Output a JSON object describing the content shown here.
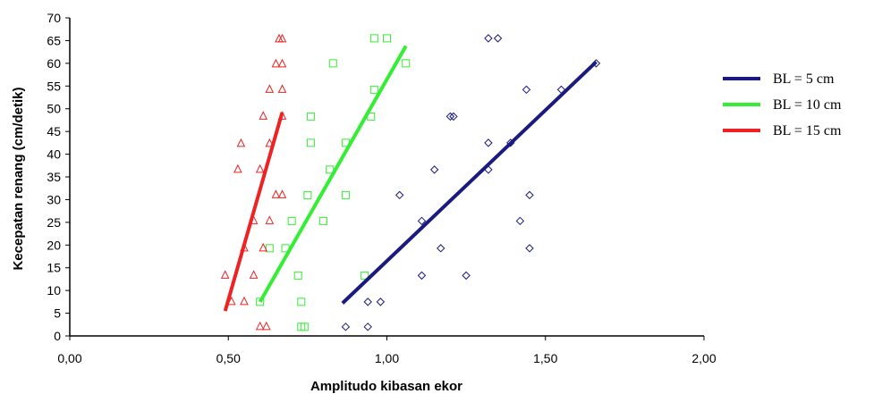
{
  "chart_data": {
    "type": "scatter",
    "title": "",
    "xlabel": "Amplitudo kibasan ekor",
    "ylabel": "Kecepatan renang (cm/detik)",
    "xlim": [
      0,
      2
    ],
    "ylim": [
      0,
      70
    ],
    "x_ticks": [
      "0,00",
      "0,50",
      "1,00",
      "1,50",
      "2,00"
    ],
    "y_ticks": [
      "0",
      "5",
      "10",
      "15",
      "20",
      "25",
      "30",
      "35",
      "40",
      "45",
      "50",
      "55",
      "60",
      "65",
      "70"
    ],
    "legend_position": "right",
    "series": [
      {
        "name": "BL = 5 cm",
        "color": "#1a1a80",
        "marker": "diamond",
        "points": [
          [
            0.87,
            2
          ],
          [
            0.94,
            2
          ],
          [
            0.94,
            7.5
          ],
          [
            0.98,
            7.5
          ],
          [
            1.11,
            13.3
          ],
          [
            1.25,
            13.3
          ],
          [
            1.17,
            19.3
          ],
          [
            1.45,
            19.3
          ],
          [
            1.11,
            25.3
          ],
          [
            1.42,
            25.3
          ],
          [
            1.04,
            31
          ],
          [
            1.45,
            31
          ],
          [
            1.15,
            36.6
          ],
          [
            1.32,
            36.6
          ],
          [
            1.32,
            42.5
          ],
          [
            1.39,
            42.5
          ],
          [
            1.2,
            48.3
          ],
          [
            1.21,
            48.3
          ],
          [
            1.44,
            54.2
          ],
          [
            1.55,
            54.2
          ],
          [
            1.66,
            60
          ],
          [
            1.32,
            65.5
          ],
          [
            1.35,
            65.5
          ]
        ],
        "trend": [
          [
            0.86,
            7.2
          ],
          [
            1.66,
            60.3
          ]
        ]
      },
      {
        "name": "BL = 10 cm",
        "color": "#33ee33",
        "marker": "square",
        "points": [
          [
            0.73,
            2
          ],
          [
            0.74,
            2
          ],
          [
            0.6,
            7.5
          ],
          [
            0.73,
            7.5
          ],
          [
            0.72,
            13.3
          ],
          [
            0.93,
            13.3
          ],
          [
            0.63,
            19.3
          ],
          [
            0.68,
            19.3
          ],
          [
            0.7,
            25.3
          ],
          [
            0.8,
            25.3
          ],
          [
            0.75,
            31
          ],
          [
            0.87,
            31
          ],
          [
            0.82,
            36.6
          ],
          [
            0.76,
            42.5
          ],
          [
            0.87,
            42.5
          ],
          [
            0.76,
            48.3
          ],
          [
            0.95,
            48.3
          ],
          [
            0.96,
            54.2
          ],
          [
            0.83,
            60
          ],
          [
            1.06,
            60
          ],
          [
            0.96,
            65.5
          ],
          [
            1.0,
            65.5
          ]
        ],
        "trend": [
          [
            0.6,
            7.5
          ],
          [
            1.06,
            63.8
          ]
        ]
      },
      {
        "name": "BL = 15 cm",
        "color": "#ee2222",
        "marker": "triangle",
        "points": [
          [
            0.6,
            2
          ],
          [
            0.62,
            2
          ],
          [
            0.51,
            7.5
          ],
          [
            0.55,
            7.5
          ],
          [
            0.49,
            13.3
          ],
          [
            0.58,
            13.3
          ],
          [
            0.55,
            19.3
          ],
          [
            0.61,
            19.3
          ],
          [
            0.58,
            25.3
          ],
          [
            0.63,
            25.3
          ],
          [
            0.65,
            31
          ],
          [
            0.67,
            31
          ],
          [
            0.53,
            36.6
          ],
          [
            0.6,
            36.6
          ],
          [
            0.54,
            42.3
          ],
          [
            0.63,
            42.3
          ],
          [
            0.61,
            48.3
          ],
          [
            0.67,
            48.3
          ],
          [
            0.63,
            54.2
          ],
          [
            0.67,
            54.2
          ],
          [
            0.65,
            59.8
          ],
          [
            0.67,
            59.8
          ],
          [
            0.66,
            65.3
          ],
          [
            0.67,
            65.3
          ]
        ],
        "trend": [
          [
            0.49,
            5.5
          ],
          [
            0.67,
            49.2
          ]
        ]
      }
    ]
  }
}
